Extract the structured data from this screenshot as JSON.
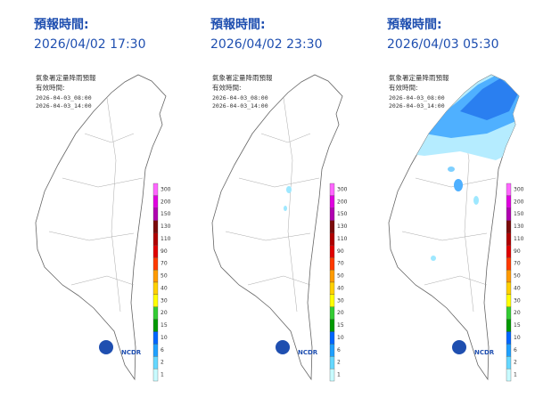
{
  "panels": [
    {
      "forecast_label": "預報時間:",
      "forecast_time": "2026/04/02 17:30",
      "map_title": "氣象署定量降雨預報",
      "valid_label": "有效時間:",
      "valid_start": "2026-04-03_08:00",
      "valid_end": "2026-04-03_14:00"
    },
    {
      "forecast_label": "預報時間:",
      "forecast_time": "2026/04/02 23:30",
      "map_title": "氣象署定量降雨預報",
      "valid_label": "有效時間:",
      "valid_start": "2026-04-03_08:00",
      "valid_end": "2026-04-03_14:00"
    },
    {
      "forecast_label": "預報時間:",
      "forecast_time": "2026/04/03 05:30",
      "map_title": "氣象署定量降雨預報",
      "valid_label": "有效時間:",
      "valid_start": "2026-04-03_08:00",
      "valid_end": "2026-04-03_14:00"
    }
  ],
  "legend": [
    {
      "label": "300",
      "color": "#ff66ff"
    },
    {
      "label": "200",
      "color": "#e000e0"
    },
    {
      "label": "150",
      "color": "#b000b0"
    },
    {
      "label": "130",
      "color": "#7a0a0a"
    },
    {
      "label": "110",
      "color": "#b00000"
    },
    {
      "label": "90",
      "color": "#e00000"
    },
    {
      "label": "70",
      "color": "#ff3a00"
    },
    {
      "label": "50",
      "color": "#ff9a00"
    },
    {
      "label": "40",
      "color": "#ffd000"
    },
    {
      "label": "30",
      "color": "#ffff00"
    },
    {
      "label": "20",
      "color": "#33cc33"
    },
    {
      "label": "15",
      "color": "#009900"
    },
    {
      "label": "10",
      "color": "#0066ff"
    },
    {
      "label": "6",
      "color": "#1ea0ff"
    },
    {
      "label": "2",
      "color": "#66d8ff"
    },
    {
      "label": "1",
      "color": "#c8fbff"
    }
  ],
  "logo_text": "NCDR"
}
